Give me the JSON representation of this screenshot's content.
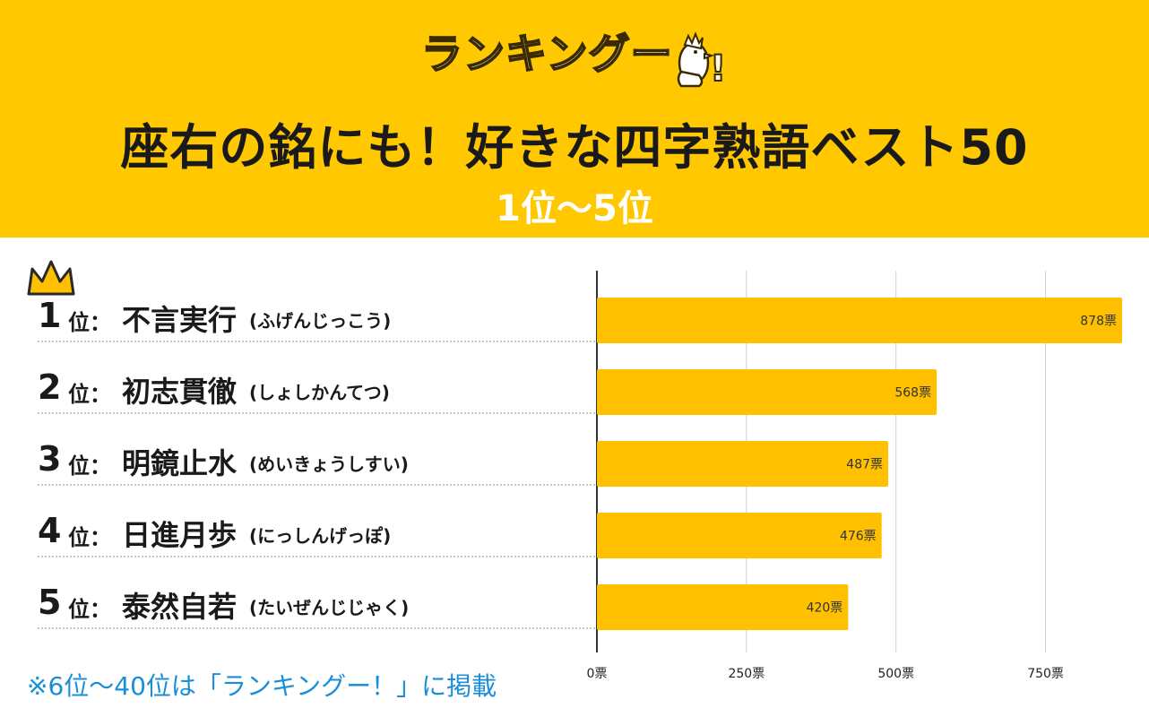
{
  "header": {
    "logo_text": "ランキングー",
    "logo_mark": "!",
    "title": "座右の銘にも！好きな四字熟語ベスト50",
    "subtitle": "1位〜5位"
  },
  "icons": {
    "crown": "crown-icon",
    "mascot": "chicken-thumbs-up-icon"
  },
  "colors": {
    "header_bg": "#FFC800",
    "bar": "#FFC000",
    "footnote": "#1a8fd6"
  },
  "rankings": [
    {
      "rank": "1",
      "suffix": "位：",
      "idiom": "不言実行",
      "reading": "(ふげんじっこう)",
      "votes_label": "878票"
    },
    {
      "rank": "2",
      "suffix": "位：",
      "idiom": "初志貫徹",
      "reading": "(しょしかんてつ)",
      "votes_label": "568票"
    },
    {
      "rank": "3",
      "suffix": "位：",
      "idiom": "明鏡止水",
      "reading": "(めいきょうしすい)",
      "votes_label": "487票"
    },
    {
      "rank": "4",
      "suffix": "位：",
      "idiom": "日進月歩",
      "reading": "(にっしんげっぽ)",
      "votes_label": "476票"
    },
    {
      "rank": "5",
      "suffix": "位：",
      "idiom": "泰然自若",
      "reading": "(たいぜんじじゃく)",
      "votes_label": "420票"
    }
  ],
  "chart_data": {
    "type": "bar",
    "orientation": "horizontal",
    "title": "座右の銘にも！好きな四字熟語ベスト50",
    "subtitle": "1位〜5位",
    "categories": [
      "不言実行",
      "初志貫徹",
      "明鏡止水",
      "日進月歩",
      "泰然自若"
    ],
    "values": [
      878,
      568,
      487,
      476,
      420
    ],
    "value_labels": [
      "878票",
      "568票",
      "487票",
      "476票",
      "420票"
    ],
    "unit": "票",
    "xlim": [
      0,
      878
    ],
    "xticks": [
      0,
      250,
      500,
      750
    ],
    "xtick_labels": [
      "0票",
      "250票",
      "500票",
      "750票"
    ],
    "grid": true,
    "legend": "none"
  },
  "footnote": "※6位〜40位は「ランキングー！」に掲載"
}
